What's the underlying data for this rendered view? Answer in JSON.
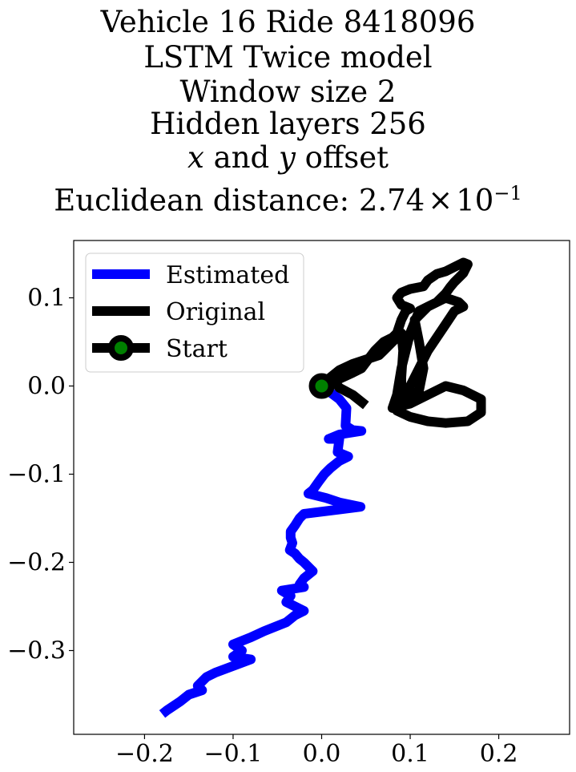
{
  "chart_data": {
    "type": "line",
    "title_lines": [
      "Vehicle 16 Ride 8418096",
      "LSTM Twice model",
      "Window size 2",
      "Hidden layers 256"
    ],
    "title_offset_line": {
      "x": "x",
      "and": "and",
      "y": "y",
      "offset": "offset"
    },
    "title_distance": {
      "prefix": "Euclidean distance: ",
      "mantissa": "2.74",
      "times": "×",
      "base": "10",
      "exponent": "−1"
    },
    "xlim": [
      -0.28,
      0.28
    ],
    "ylim": [
      -0.395,
      0.165
    ],
    "xticks": [
      {
        "value": -0.2,
        "label": "−0.2"
      },
      {
        "value": -0.1,
        "label": "−0.1"
      },
      {
        "value": 0.0,
        "label": "0.0"
      },
      {
        "value": 0.1,
        "label": "0.1"
      },
      {
        "value": 0.2,
        "label": "0.2"
      }
    ],
    "yticks": [
      {
        "value": 0.1,
        "label": "0.1"
      },
      {
        "value": 0.0,
        "label": "0.0"
      },
      {
        "value": -0.1,
        "label": "−0.1"
      },
      {
        "value": -0.2,
        "label": "−0.2"
      },
      {
        "value": -0.3,
        "label": "−0.3"
      }
    ],
    "grid": false,
    "legend_placement": "top-left",
    "series": [
      {
        "name": "Estimated",
        "color": "#0000ff",
        "points": [
          [
            0.0,
            0.0
          ],
          [
            0.02,
            -0.015
          ],
          [
            0.028,
            -0.025
          ],
          [
            0.027,
            -0.045
          ],
          [
            0.035,
            -0.05
          ],
          [
            0.045,
            -0.051
          ],
          [
            0.02,
            -0.055
          ],
          [
            0.008,
            -0.06
          ],
          [
            0.02,
            -0.06
          ],
          [
            0.018,
            -0.075
          ],
          [
            0.03,
            -0.08
          ],
          [
            0.02,
            -0.085
          ],
          [
            0.01,
            -0.093
          ],
          [
            0.003,
            -0.1
          ],
          [
            -0.003,
            -0.108
          ],
          [
            -0.01,
            -0.118
          ],
          [
            -0.015,
            -0.122
          ],
          [
            0.005,
            -0.127
          ],
          [
            0.02,
            -0.132
          ],
          [
            0.044,
            -0.137
          ],
          [
            0.02,
            -0.14
          ],
          [
            -0.02,
            -0.145
          ],
          [
            -0.025,
            -0.15
          ],
          [
            -0.03,
            -0.158
          ],
          [
            -0.035,
            -0.165
          ],
          [
            -0.035,
            -0.172
          ],
          [
            -0.033,
            -0.178
          ],
          [
            -0.036,
            -0.186
          ],
          [
            -0.03,
            -0.19
          ],
          [
            -0.025,
            -0.196
          ],
          [
            -0.02,
            -0.2
          ],
          [
            -0.015,
            -0.205
          ],
          [
            -0.01,
            -0.21
          ],
          [
            -0.02,
            -0.218
          ],
          [
            -0.025,
            -0.225
          ],
          [
            -0.02,
            -0.228
          ],
          [
            -0.045,
            -0.232
          ],
          [
            -0.035,
            -0.238
          ],
          [
            -0.04,
            -0.245
          ],
          [
            -0.03,
            -0.25
          ],
          [
            -0.02,
            -0.255
          ],
          [
            -0.03,
            -0.26
          ],
          [
            -0.04,
            -0.268
          ],
          [
            -0.065,
            -0.278
          ],
          [
            -0.08,
            -0.285
          ],
          [
            -0.1,
            -0.293
          ],
          [
            -0.09,
            -0.3
          ],
          [
            -0.1,
            -0.307
          ],
          [
            -0.08,
            -0.31
          ],
          [
            -0.12,
            -0.325
          ],
          [
            -0.13,
            -0.33
          ],
          [
            -0.14,
            -0.34
          ],
          [
            -0.135,
            -0.345
          ],
          [
            -0.15,
            -0.35
          ],
          [
            -0.16,
            -0.358
          ],
          [
            -0.175,
            -0.368
          ],
          [
            -0.18,
            -0.372
          ]
        ]
      },
      {
        "name": "Original",
        "color": "#000000",
        "points": [
          [
            0.0,
            0.0
          ],
          [
            0.02,
            0.008
          ],
          [
            0.035,
            0.015
          ],
          [
            0.045,
            0.02
          ],
          [
            0.06,
            0.04
          ],
          [
            0.07,
            0.05
          ],
          [
            0.08,
            0.055
          ],
          [
            0.085,
            0.06
          ],
          [
            0.09,
            0.075
          ],
          [
            0.095,
            0.085
          ],
          [
            0.1,
            0.088
          ],
          [
            0.09,
            0.092
          ],
          [
            0.085,
            0.1
          ],
          [
            0.09,
            0.106
          ],
          [
            0.1,
            0.11
          ],
          [
            0.115,
            0.113
          ],
          [
            0.12,
            0.12
          ],
          [
            0.13,
            0.127
          ],
          [
            0.14,
            0.13
          ],
          [
            0.15,
            0.135
          ],
          [
            0.16,
            0.14
          ],
          [
            0.165,
            0.138
          ],
          [
            0.16,
            0.128
          ],
          [
            0.15,
            0.118
          ],
          [
            0.145,
            0.112
          ],
          [
            0.14,
            0.105
          ],
          [
            0.135,
            0.1
          ],
          [
            0.13,
            0.095
          ],
          [
            0.12,
            0.09
          ],
          [
            0.11,
            0.085
          ],
          [
            0.1,
            0.06
          ],
          [
            0.095,
            0.04
          ],
          [
            0.09,
            0.02
          ],
          [
            0.085,
            -0.01
          ],
          [
            0.08,
            -0.025
          ],
          [
            0.1,
            -0.02
          ],
          [
            0.12,
            -0.01
          ],
          [
            0.14,
            0.0
          ],
          [
            0.16,
            -0.005
          ],
          [
            0.18,
            -0.015
          ],
          [
            0.18,
            -0.03
          ],
          [
            0.165,
            -0.04
          ],
          [
            0.14,
            -0.042
          ],
          [
            0.12,
            -0.04
          ],
          [
            0.1,
            -0.035
          ],
          [
            0.085,
            -0.028
          ],
          [
            0.11,
            -0.005
          ],
          [
            0.115,
            0.02
          ],
          [
            0.11,
            0.05
          ],
          [
            0.105,
            0.075
          ],
          [
            0.12,
            0.09
          ],
          [
            0.14,
            0.1
          ],
          [
            0.155,
            0.095
          ],
          [
            0.16,
            0.09
          ],
          [
            0.15,
            0.085
          ],
          [
            0.14,
            0.07
          ],
          [
            0.13,
            0.055
          ],
          [
            0.12,
            0.04
          ],
          [
            0.11,
            0.02
          ],
          [
            0.1,
            0.0
          ],
          [
            0.092,
            -0.01
          ],
          [
            0.09,
            -0.02
          ],
          [
            0.09,
            0.01
          ],
          [
            0.092,
            0.04
          ],
          [
            0.09,
            0.06
          ],
          [
            0.08,
            0.05
          ],
          [
            0.07,
            0.04
          ],
          [
            0.065,
            0.035
          ],
          [
            0.05,
            0.03
          ],
          [
            0.035,
            0.025
          ],
          [
            0.02,
            0.018
          ],
          [
            0.01,
            0.01
          ],
          [
            0.02,
            -0.002
          ],
          [
            0.035,
            -0.01
          ],
          [
            0.05,
            -0.022
          ]
        ]
      }
    ],
    "start_marker": {
      "name": "Start",
      "point": [
        0.0,
        0.0
      ],
      "edge_color": "#000000",
      "face_color": "#008000"
    },
    "legend_entries": [
      "Estimated",
      "Original",
      "Start"
    ]
  }
}
